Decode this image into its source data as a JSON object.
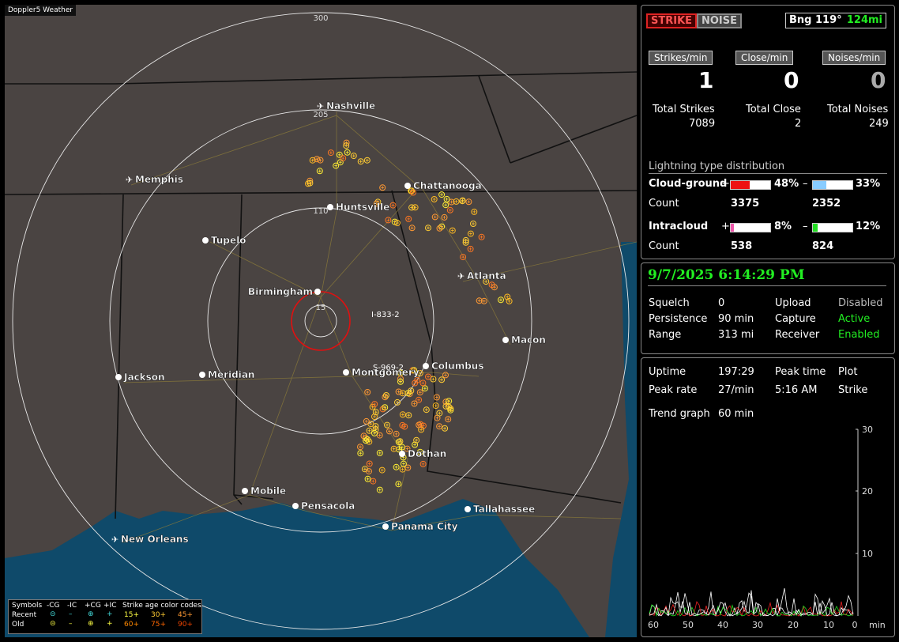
{
  "app": {
    "watermark": "Doppler5 Weather"
  },
  "header": {
    "strike_label": "STRIKE",
    "noise_label": "NOISE",
    "bearing_label": "Bng 119°",
    "bearing_distance": "124mi"
  },
  "rates": {
    "strikes": {
      "label": "Strikes/min",
      "value": "1"
    },
    "close": {
      "label": "Close/min",
      "value": "0"
    },
    "noises": {
      "label": "Noises/min",
      "value": "0"
    }
  },
  "totals": {
    "strikes": {
      "label": "Total Strikes",
      "value": "7089"
    },
    "close": {
      "label": "Total Close",
      "value": "2"
    },
    "noises": {
      "label": "Total Noises",
      "value": "249"
    }
  },
  "distribution": {
    "title": "Lightning type distribution",
    "cg_label": "Cloud-ground",
    "ic_label": "Intracloud",
    "count_label": "Count",
    "plus_sign": "+",
    "minus_sign": "–",
    "cg_plus": {
      "pct": "48%",
      "count": "3375",
      "fraction": 0.48,
      "color": "#ee1111"
    },
    "cg_minus": {
      "pct": "33%",
      "count": "2352",
      "fraction": 0.33,
      "color": "#88ccff"
    },
    "ic_plus": {
      "pct": "8%",
      "count": "538",
      "fraction": 0.08,
      "color": "#ee55aa"
    },
    "ic_minus": {
      "pct": "12%",
      "count": "824",
      "fraction": 0.12,
      "color": "#22dd22"
    }
  },
  "status": {
    "datetime": "9/7/2025 6:14:29 PM",
    "squelch_label": "Squelch",
    "squelch": "0",
    "persistence_label": "Persistence",
    "persistence": "90 min",
    "range_label": "Range",
    "range": "313 mi",
    "upload_label": "Upload",
    "upload": "Disabled",
    "capture_label": "Capture",
    "capture": "Active",
    "receiver_label": "Receiver",
    "receiver": "Enabled"
  },
  "stats": {
    "uptime_label": "Uptime",
    "uptime": "197:29",
    "peak_time_label": "Peak time",
    "peak_time": "5:16 AM",
    "plot_label": "Plot",
    "plot": "Strike",
    "peak_rate_label": "Peak rate",
    "peak_rate": "27/min",
    "trend_label": "Trend graph",
    "trend": "60 min"
  },
  "trend_chart": {
    "y_ticks": [
      "30",
      "20",
      "10"
    ],
    "x_ticks": [
      "60",
      "50",
      "40",
      "30",
      "20",
      "10",
      "0"
    ],
    "x_unit": "min",
    "ylim": [
      0,
      30
    ]
  },
  "map": {
    "range_rings": [
      "300",
      "205",
      "110",
      "15"
    ],
    "cities": [
      {
        "name": "Nashville"
      },
      {
        "name": "Memphis"
      },
      {
        "name": "Chattanooga"
      },
      {
        "name": "Huntsville"
      },
      {
        "name": "Tupelo"
      },
      {
        "name": "Atlanta"
      },
      {
        "name": "Birmingham"
      },
      {
        "name": "Macon"
      },
      {
        "name": "Columbus"
      },
      {
        "name": "Montgomery"
      },
      {
        "name": "Jackson"
      },
      {
        "name": "Meridian"
      },
      {
        "name": "Dothan"
      },
      {
        "name": "Mobile"
      },
      {
        "name": "Pensacola"
      },
      {
        "name": "Tallahassee"
      },
      {
        "name": "Panama City"
      },
      {
        "name": "New Orleans"
      }
    ],
    "road_labels": [
      "I-833-2",
      "S-969-2"
    ]
  },
  "legend": {
    "symbols": "Symbols",
    "h_mcg": "-CG",
    "h_mic": "-IC",
    "h_pcg": "+CG",
    "h_pic": "+IC",
    "codes": "Strike age color codes",
    "recent": "Recent",
    "old": "Old",
    "a1": "15+",
    "a2": "30+",
    "a3": "45+",
    "a4": "60+",
    "a5": "75+",
    "a6": "90+"
  }
}
